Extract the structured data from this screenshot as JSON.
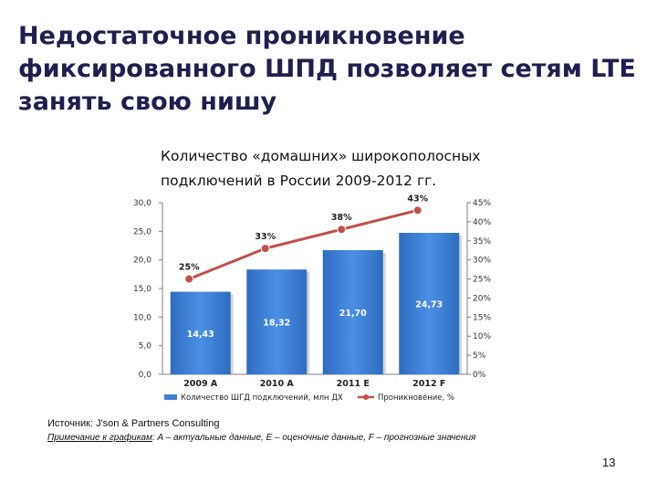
{
  "slide": {
    "title_lines": [
      "Недостаточное проникновение",
      "фиксированного ШПД позволяет сетям LTE",
      "занять свою нишу"
    ],
    "source": "Источник: J'son & Partners Consulting",
    "note_label": "Примечание к графикам",
    "note_text": ": A – актуальные данные, E – оценочные данные, F – прогнозные значения",
    "page_number": "13"
  },
  "chart_data": {
    "type": "bar",
    "title_lines": [
      "Количество «домашних» широкополосных",
      "подключений в России 2009‑2012 гг."
    ],
    "categories": [
      "2009 A",
      "2010 A",
      "2011 E",
      "2012 F"
    ],
    "series": [
      {
        "name": "Количество ШГД подключений, млн ДХ",
        "type": "bar",
        "axis": "left",
        "values": [
          14.43,
          18.32,
          21.7,
          24.73
        ],
        "labels": [
          "14,43",
          "18,32",
          "21,70",
          "24,73"
        ],
        "color": "#3f7fd4"
      },
      {
        "name": "Проникновение, %",
        "type": "line",
        "axis": "right",
        "values": [
          25,
          33,
          38,
          43
        ],
        "labels": [
          "25%",
          "33%",
          "38%",
          "43%"
        ],
        "color": "#c0504d"
      }
    ],
    "left_axis": {
      "range": [
        0,
        30
      ],
      "ticks": [
        0,
        5,
        10,
        15,
        20,
        25,
        30
      ],
      "tick_labels": [
        "0,0",
        "5,0",
        "10,0",
        "15,0",
        "20,0",
        "25,0",
        "30,0"
      ]
    },
    "right_axis": {
      "range": [
        0,
        45
      ],
      "ticks": [
        0,
        5,
        10,
        15,
        20,
        25,
        30,
        35,
        40,
        45
      ],
      "tick_labels": [
        "0%",
        "5%",
        "10%",
        "15%",
        "20%",
        "25%",
        "30%",
        "35%",
        "40%",
        "45%"
      ]
    },
    "grid": false,
    "legend_position": "bottom"
  }
}
